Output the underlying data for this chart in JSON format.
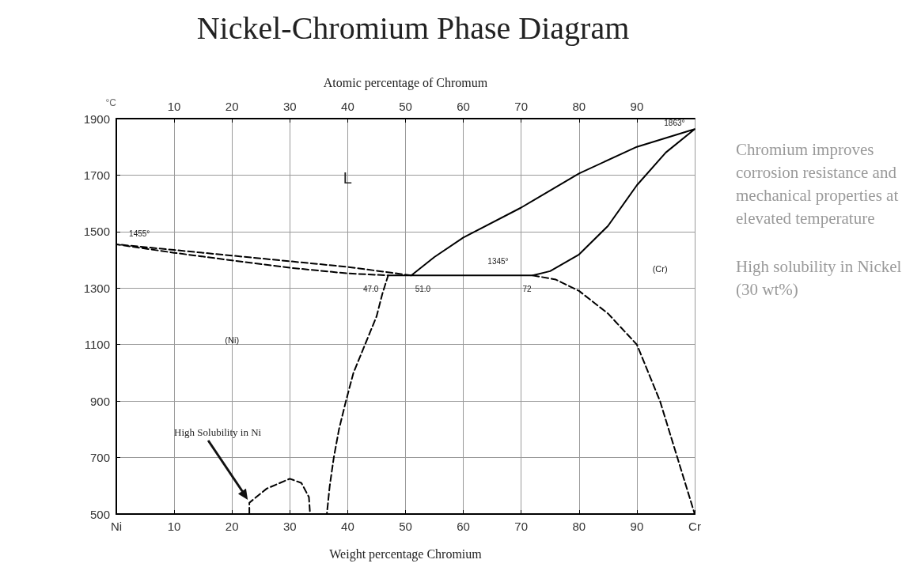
{
  "chart_data": {
    "type": "line",
    "title": "Nickel-Chromium Phase Diagram",
    "xlabel": "Weight percentage Chromium",
    "x2label": "Atomic percentage of Chromum",
    "ylabel": "°C",
    "xlim": [
      0,
      100
    ],
    "xticks": [
      {
        "value": 0,
        "label": "Ni"
      },
      10,
      20,
      30,
      40,
      50,
      60,
      70,
      80,
      90,
      {
        "value": 100,
        "label": "Cr"
      }
    ],
    "x2lim": [
      0,
      100
    ],
    "x2ticks": [
      10,
      20,
      30,
      40,
      50,
      60,
      70,
      80,
      90
    ],
    "ylim": [
      500,
      1900
    ],
    "yticks": [
      500,
      700,
      900,
      1100,
      1300,
      1500,
      1700,
      1900
    ],
    "grid": true,
    "marker": "none",
    "series": [
      {
        "color": "#000000",
        "line_style": "dashed",
        "x": [
          51,
          40,
          30,
          20,
          10,
          0,
          10,
          20,
          30,
          40,
          47,
          46,
          45,
          43,
          41,
          39.7,
          38.5,
          37.6,
          36.9,
          36.4
        ],
        "values": [
          1345,
          1375,
          1395,
          1415,
          1435,
          1455,
          1425,
          1398,
          1372,
          1352,
          1345,
          1280,
          1200,
          1100,
          1000,
          900,
          800,
          700,
          600,
          500
        ]
      },
      {
        "color": "#000000",
        "line_style": "solid",
        "x": [
          47,
          72,
          75,
          80,
          85,
          90,
          95,
          100,
          90,
          80,
          70,
          60,
          55,
          51
        ],
        "values": [
          1345,
          1345,
          1360,
          1419,
          1520,
          1664,
          1780,
          1863,
          1800,
          1706,
          1585,
          1479,
          1410,
          1345
        ]
      },
      {
        "color": "#000000",
        "line_style": "dashed",
        "x": [
          72,
          76,
          80,
          85,
          90,
          94,
          97,
          100
        ],
        "values": [
          1345,
          1330,
          1290,
          1210,
          1100,
          900,
          700,
          500
        ]
      },
      {
        "color": "#000000",
        "line_style": "dashed",
        "x": [
          23,
          23,
          26,
          30,
          32,
          33.3,
          33.5
        ],
        "values": [
          500,
          540,
          590,
          625,
          610,
          560,
          500
        ]
      }
    ],
    "annotations": [
      "L",
      "(Ni)",
      "(Cr)",
      "1455°",
      "1863°",
      "1345°",
      "47.0",
      "51.0",
      "72",
      "High Solubility in Ni",
      "Chromium improves corrosion resistance and mechanical properties at elevated temperature",
      "High solubility in Nickel (30 wt%)"
    ]
  }
}
